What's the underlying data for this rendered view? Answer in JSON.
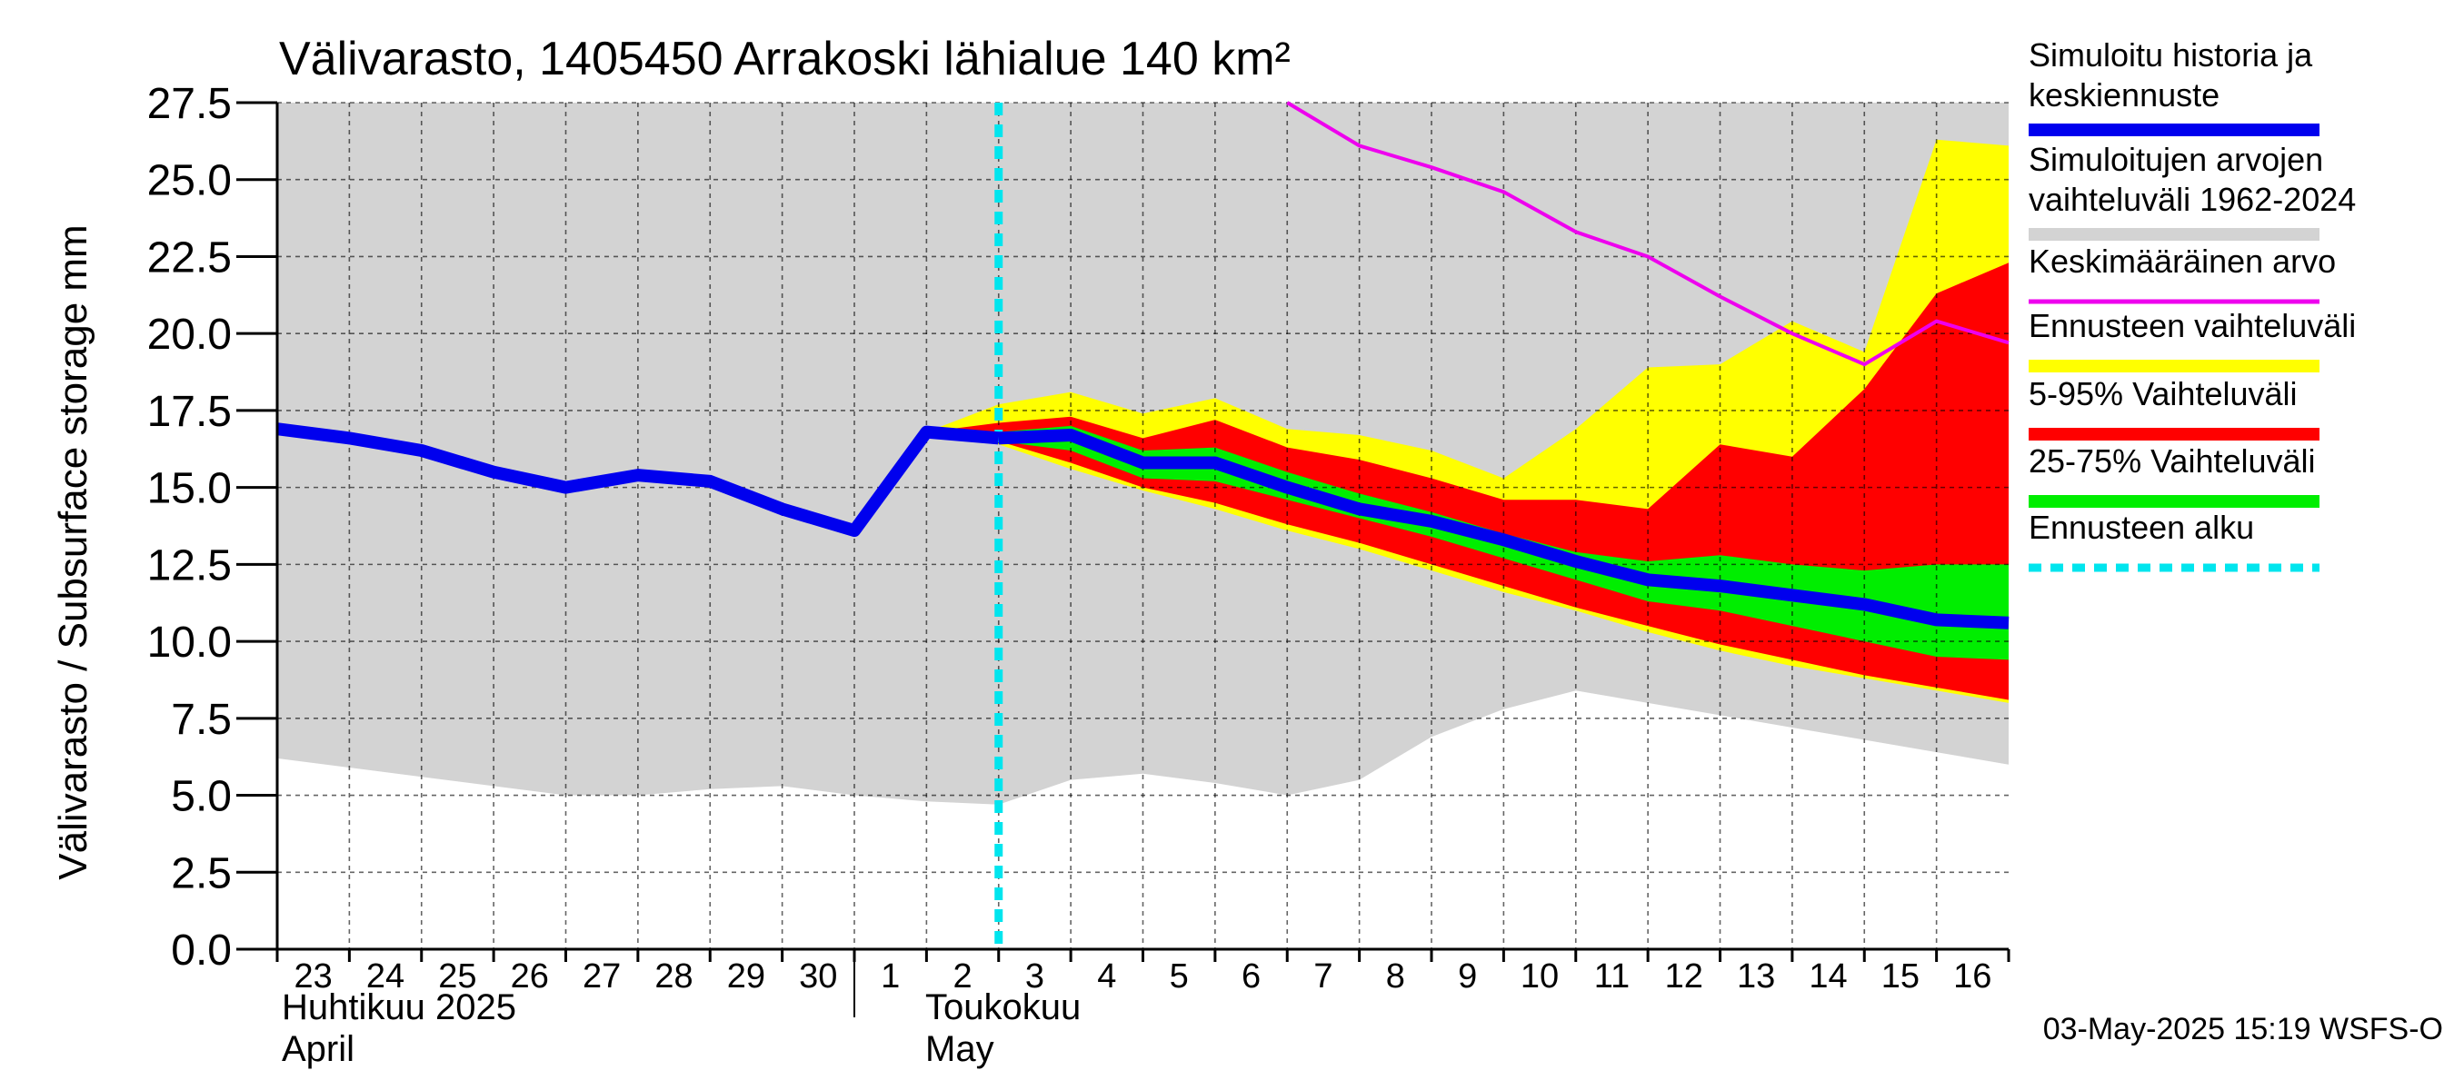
{
  "chart_data": {
    "type": "area",
    "title": "Välivarasto, 1405450 Arrakoski lähialue 140 km²",
    "ylabel": "Välivarasto / Subsurface storage  mm",
    "ylim": [
      0,
      27.5
    ],
    "y_ticks": [
      "0.0",
      "2.5",
      "5.0",
      "7.5",
      "10.0",
      "12.5",
      "15.0",
      "17.5",
      "20.0",
      "22.5",
      "25.0",
      "27.5"
    ],
    "y_tick_values": [
      0,
      2.5,
      5,
      7.5,
      10,
      12.5,
      15,
      17.5,
      20,
      22.5,
      25,
      27.5
    ],
    "x_range_days": [
      0,
      24
    ],
    "x_day_labels": [
      "23",
      "24",
      "25",
      "26",
      "27",
      "28",
      "29",
      "30",
      "1",
      "2",
      "3",
      "4",
      "5",
      "6",
      "7",
      "8",
      "9",
      "10",
      "11",
      "12",
      "13",
      "14",
      "15",
      "16"
    ],
    "month_labels": {
      "april_fi": "Huhtikuu  2025",
      "april_en": "April",
      "may_fi": "Toukokuu",
      "may_en": "May"
    },
    "forecast_start_day": 10.0,
    "timestamp": "03-May-2025 15:19 WSFS-O",
    "legend": [
      {
        "label1": "Simuloitu historia ja",
        "label2": "keskiennuste",
        "color": "#0000ee",
        "style": "thick"
      },
      {
        "label1": "Simuloitujen arvojen",
        "label2": "vaihteluväli 1962-2024",
        "color": "#d3d3d3",
        "style": "band"
      },
      {
        "label1": "Keskimääräinen arvo",
        "label2": "",
        "color": "#ee00ee",
        "style": "line"
      },
      {
        "label1": "Ennusteen vaihteluväli",
        "label2": "",
        "color": "#ffff00",
        "style": "band"
      },
      {
        "label1": "5-95% Vaihteluväli",
        "label2": "",
        "color": "#ff0000",
        "style": "band"
      },
      {
        "label1": "25-75% Vaihteluväli",
        "label2": "",
        "color": "#00ee00",
        "style": "band"
      },
      {
        "label1": "Ennusteen alku",
        "label2": "",
        "color": "#00e5ee",
        "style": "dashed"
      }
    ],
    "series": {
      "hist_range": {
        "x": [
          0,
          1,
          2,
          3,
          4,
          5,
          6,
          7,
          8,
          9,
          10,
          11,
          12,
          13,
          14,
          15,
          16,
          17,
          18,
          19,
          20,
          21,
          22,
          23,
          24
        ],
        "low": [
          6.2,
          5.9,
          5.6,
          5.3,
          5.0,
          5.0,
          5.2,
          5.3,
          5.0,
          4.8,
          4.7,
          5.5,
          5.7,
          5.4,
          5.0,
          5.5,
          6.9,
          7.8,
          8.4,
          8.0,
          7.6,
          7.2,
          6.8,
          6.4,
          6.0
        ],
        "high": [
          27.5,
          27.5,
          27.5,
          27.5,
          27.5,
          27.5,
          27.5,
          27.5,
          27.5,
          27.5,
          27.5,
          27.5,
          27.5,
          27.5,
          27.5,
          27.5,
          27.5,
          27.5,
          27.5,
          27.5,
          27.5,
          27.5,
          27.5,
          27.5,
          27.5
        ]
      },
      "forecast_range": {
        "x": [
          9,
          10,
          11,
          12,
          13,
          14,
          15,
          16,
          17,
          18,
          19,
          20,
          21,
          22,
          23,
          24
        ],
        "low": [
          16.8,
          16.4,
          15.6,
          14.9,
          14.3,
          13.6,
          13.0,
          12.3,
          11.6,
          11.0,
          10.3,
          9.7,
          9.2,
          8.8,
          8.4,
          8.0
        ],
        "high": [
          16.8,
          17.7,
          18.1,
          17.4,
          17.9,
          16.9,
          16.7,
          16.2,
          15.3,
          16.9,
          18.9,
          19.0,
          20.4,
          19.4,
          26.3,
          26.1
        ]
      },
      "p5_95": {
        "x": [
          9,
          10,
          11,
          12,
          13,
          14,
          15,
          16,
          17,
          18,
          19,
          20,
          21,
          22,
          23,
          24
        ],
        "low": [
          16.8,
          16.5,
          15.8,
          15.0,
          14.5,
          13.8,
          13.2,
          12.5,
          11.8,
          11.1,
          10.5,
          9.9,
          9.4,
          8.9,
          8.5,
          8.1
        ],
        "high": [
          16.8,
          17.1,
          17.3,
          16.6,
          17.2,
          16.3,
          15.9,
          15.3,
          14.6,
          14.6,
          14.3,
          16.4,
          16.0,
          18.2,
          21.3,
          22.3
        ]
      },
      "p25_75": {
        "x": [
          9,
          10,
          11,
          12,
          13,
          14,
          15,
          16,
          17,
          18,
          19,
          20,
          21,
          22,
          23,
          24
        ],
        "low": [
          16.8,
          16.5,
          16.2,
          15.3,
          15.2,
          14.6,
          14.0,
          13.4,
          12.7,
          12.0,
          11.3,
          11.0,
          10.5,
          10.0,
          9.5,
          9.4
        ],
        "high": [
          16.8,
          16.8,
          17.0,
          16.2,
          16.3,
          15.5,
          14.8,
          14.2,
          13.5,
          12.9,
          12.6,
          12.8,
          12.5,
          12.3,
          12.5,
          12.5
        ]
      },
      "sim_history": {
        "x": [
          0,
          1,
          2,
          3,
          4,
          5,
          6,
          7,
          8,
          9,
          10
        ],
        "values": [
          16.9,
          16.6,
          16.2,
          15.5,
          15.0,
          15.4,
          15.2,
          14.3,
          13.6,
          16.8,
          16.6
        ]
      },
      "median_forecast": {
        "x": [
          10,
          11,
          12,
          13,
          14,
          15,
          16,
          17,
          18,
          19,
          20,
          21,
          22,
          23,
          24
        ],
        "values": [
          16.6,
          16.7,
          15.8,
          15.8,
          15.0,
          14.3,
          13.9,
          13.3,
          12.6,
          12.0,
          11.8,
          11.5,
          11.2,
          10.7,
          10.6
        ]
      },
      "mean_value": {
        "x": [
          14,
          15,
          16,
          17,
          18,
          19,
          20,
          21,
          22,
          23,
          24
        ],
        "values": [
          27.5,
          26.1,
          25.4,
          24.6,
          23.3,
          22.5,
          21.2,
          20.0,
          19.0,
          20.4,
          19.7
        ]
      }
    }
  }
}
